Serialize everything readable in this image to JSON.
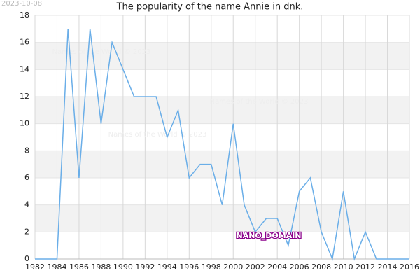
{
  "chart_data": {
    "type": "line",
    "title": "The popularity of the name Annie in dnk.",
    "stamp": "2023-10-08",
    "watermarks": [
      "Names of the World © 2023",
      "Names of the World © 2023",
      "Names of the World © 2023"
    ],
    "domain_label": "NANO_DOMAIN",
    "x": [
      1982,
      1983,
      1984,
      1985,
      1986,
      1987,
      1988,
      1989,
      1990,
      1991,
      1992,
      1993,
      1994,
      1995,
      1996,
      1997,
      1998,
      1999,
      2000,
      2001,
      2002,
      2003,
      2004,
      2005,
      2006,
      2007,
      2008,
      2009,
      2010,
      2011,
      2012,
      2013,
      2014,
      2015,
      2016
    ],
    "series": [
      {
        "name": "Annie",
        "color": "#6aaee8",
        "values": [
          0,
          0,
          0,
          17,
          6,
          17,
          10,
          16,
          14,
          12,
          12,
          12,
          9,
          11,
          6,
          7,
          7,
          4,
          10,
          4,
          2,
          3,
          3,
          1,
          5,
          6,
          2,
          0,
          5,
          0,
          2,
          0,
          0,
          0,
          0
        ]
      }
    ],
    "xlim": [
      1982,
      2016
    ],
    "xticks": [
      1982,
      1984,
      1986,
      1988,
      1990,
      1992,
      1994,
      1996,
      1998,
      2000,
      2002,
      2004,
      2006,
      2008,
      2010,
      2012,
      2014,
      2016
    ],
    "ylim": [
      0,
      18
    ],
    "yticks": [
      0,
      2,
      4,
      6,
      8,
      10,
      12,
      14,
      16,
      18
    ],
    "grid": true
  }
}
